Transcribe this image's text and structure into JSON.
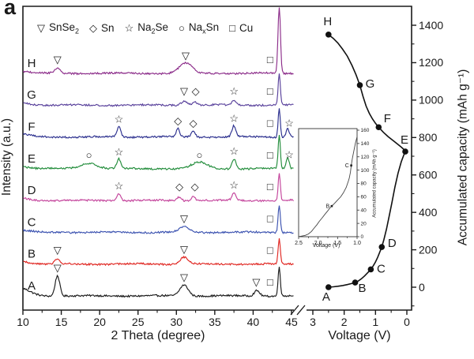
{
  "figure_label": "a",
  "chart_data": [
    {
      "id": "xrd-patterns",
      "type": "line",
      "xlabel": "2 Theta (degree)",
      "ylabel": "Intensity (a.u.)",
      "xlim": [
        10,
        45.3
      ],
      "x_ticks": [
        10,
        15,
        20,
        25,
        30,
        35,
        40,
        45
      ],
      "x_minor_step": 2.5,
      "grid": false,
      "legend_position": "top-left-inside",
      "legend": [
        {
          "symbol": "triangle-down",
          "phase": "SnSe_2"
        },
        {
          "symbol": "diamond",
          "phase": "Sn"
        },
        {
          "symbol": "star",
          "phase": "Na_2Se"
        },
        {
          "symbol": "circle",
          "phase": "Na_xSn"
        },
        {
          "symbol": "square",
          "phase": "Cu"
        }
      ],
      "traces": [
        {
          "label": "A",
          "color": "#1a1a1a",
          "peaks": [
            {
              "two_theta": 9.5,
              "height": 10,
              "width": 1.3
            },
            {
              "two_theta": 14.5,
              "height": 26,
              "width": 0.3
            },
            {
              "two_theta": 31.0,
              "height": 14,
              "width": 0.55
            },
            {
              "two_theta": 40.5,
              "height": 7,
              "width": 0.35
            },
            {
              "two_theta": 43.4,
              "height": 38,
              "width": 0.14
            }
          ],
          "markers": [
            {
              "symbol": "triangle-down",
              "two_theta": 14.5
            },
            {
              "symbol": "triangle-down",
              "two_theta": 31.0
            },
            {
              "symbol": "triangle-down",
              "two_theta": 40.4
            },
            {
              "symbol": "square",
              "two_theta": 42.2
            }
          ]
        },
        {
          "label": "B",
          "color": "#e02722",
          "peaks": [
            {
              "two_theta": 9.5,
              "height": 4,
              "width": 1.2
            },
            {
              "two_theta": 14.5,
              "height": 7,
              "width": 0.3
            },
            {
              "two_theta": 31.0,
              "height": 9,
              "width": 0.5
            },
            {
              "two_theta": 43.4,
              "height": 32,
              "width": 0.14
            }
          ],
          "markers": [
            {
              "symbol": "triangle-down",
              "two_theta": 14.5
            },
            {
              "symbol": "triangle-down",
              "two_theta": 31.0
            },
            {
              "symbol": "square",
              "two_theta": 42.2
            }
          ]
        },
        {
          "label": "C",
          "color": "#3b52b0",
          "peaks": [
            {
              "two_theta": 9.5,
              "height": 3,
              "width": 1.2
            },
            {
              "two_theta": 31.0,
              "height": 7,
              "width": 0.6
            },
            {
              "two_theta": 43.4,
              "height": 35,
              "width": 0.14
            }
          ],
          "markers": [
            {
              "symbol": "triangle-down",
              "two_theta": 31.0
            },
            {
              "symbol": "square",
              "two_theta": 42.2
            }
          ]
        },
        {
          "label": "D",
          "color": "#c4459c",
          "peaks": [
            {
              "two_theta": 9.5,
              "height": 3,
              "width": 1.2
            },
            {
              "two_theta": 22.5,
              "height": 9,
              "width": 0.25
            },
            {
              "two_theta": 30.4,
              "height": 5,
              "width": 0.25
            },
            {
              "two_theta": 32.2,
              "height": 5,
              "width": 0.25
            },
            {
              "two_theta": 37.5,
              "height": 10,
              "width": 0.25
            },
            {
              "two_theta": 43.4,
              "height": 34,
              "width": 0.14
            }
          ],
          "markers": [
            {
              "symbol": "star",
              "two_theta": 22.5
            },
            {
              "symbol": "diamond",
              "two_theta": 30.4
            },
            {
              "symbol": "diamond",
              "two_theta": 32.4
            },
            {
              "symbol": "star",
              "two_theta": 37.5
            },
            {
              "symbol": "square",
              "two_theta": 42.2
            }
          ]
        },
        {
          "label": "E",
          "color": "#218c3a",
          "peaks": [
            {
              "two_theta": 9.5,
              "height": 3,
              "width": 1.2
            },
            {
              "two_theta": 18.6,
              "height": 7,
              "width": 1.1
            },
            {
              "two_theta": 22.5,
              "height": 12,
              "width": 0.25
            },
            {
              "two_theta": 33.0,
              "height": 8,
              "width": 1.0
            },
            {
              "two_theta": 37.5,
              "height": 13,
              "width": 0.25
            },
            {
              "two_theta": 43.4,
              "height": 43,
              "width": 0.14
            },
            {
              "two_theta": 44.5,
              "height": 14,
              "width": 0.2
            }
          ],
          "markers": [
            {
              "symbol": "circle",
              "two_theta": 18.6
            },
            {
              "symbol": "star",
              "two_theta": 22.5
            },
            {
              "symbol": "circle",
              "two_theta": 33.0
            },
            {
              "symbol": "star",
              "two_theta": 37.5
            },
            {
              "symbol": "square",
              "two_theta": 42.2
            },
            {
              "symbol": "star",
              "two_theta": 44.7
            }
          ]
        },
        {
          "label": "F",
          "color": "#2b2f8e",
          "peaks": [
            {
              "two_theta": 9.5,
              "height": 4,
              "width": 1.2
            },
            {
              "two_theta": 22.5,
              "height": 13,
              "width": 0.25
            },
            {
              "two_theta": 30.2,
              "height": 11,
              "width": 0.2
            },
            {
              "two_theta": 32.2,
              "height": 8,
              "width": 0.25
            },
            {
              "two_theta": 37.5,
              "height": 14,
              "width": 0.25
            },
            {
              "two_theta": 43.4,
              "height": 36,
              "width": 0.14
            },
            {
              "two_theta": 44.5,
              "height": 11,
              "width": 0.2
            }
          ],
          "markers": [
            {
              "symbol": "star",
              "two_theta": 22.5
            },
            {
              "symbol": "diamond",
              "two_theta": 30.2
            },
            {
              "symbol": "diamond",
              "two_theta": 32.2
            },
            {
              "symbol": "star",
              "two_theta": 37.5
            },
            {
              "symbol": "square",
              "two_theta": 42.2
            },
            {
              "symbol": "star",
              "two_theta": 44.7
            }
          ]
        },
        {
          "label": "G",
          "color": "#58409b",
          "peaks": [
            {
              "two_theta": 9.5,
              "height": 3,
              "width": 1.2
            },
            {
              "two_theta": 31.0,
              "height": 5,
              "width": 0.4
            },
            {
              "two_theta": 32.4,
              "height": 4,
              "width": 0.3
            },
            {
              "two_theta": 37.5,
              "height": 5,
              "width": 0.3
            },
            {
              "two_theta": 43.4,
              "height": 40,
              "width": 0.14
            }
          ],
          "markers": [
            {
              "symbol": "triangle-down",
              "two_theta": 31.0
            },
            {
              "symbol": "diamond",
              "two_theta": 32.5
            },
            {
              "symbol": "star",
              "two_theta": 37.5
            },
            {
              "symbol": "square",
              "two_theta": 42.2
            }
          ]
        },
        {
          "label": "H",
          "color": "#8c2d8a",
          "peaks": [
            {
              "two_theta": 9.5,
              "height": 3,
              "width": 1.2
            },
            {
              "two_theta": 14.5,
              "height": 6,
              "width": 0.35
            },
            {
              "two_theta": 31.2,
              "height": 13,
              "width": 0.8
            },
            {
              "two_theta": 43.4,
              "height": 85,
              "width": 0.16
            }
          ],
          "markers": [
            {
              "symbol": "triangle-down",
              "two_theta": 14.5
            },
            {
              "symbol": "triangle-down",
              "two_theta": 31.2
            },
            {
              "symbol": "square",
              "two_theta": 42.2
            }
          ]
        }
      ]
    },
    {
      "id": "voltage-capacity-curve",
      "type": "scatter-line",
      "xlabel": "Voltage (V)",
      "ylabel": "Accumulated capacity (mAh g⁻¹)",
      "x_ticks": [
        "3",
        "2",
        "1",
        "0"
      ],
      "x_reversed": true,
      "x_minor_step": 0.5,
      "y_ticks": [
        0,
        200,
        400,
        600,
        800,
        1000,
        1200,
        1400
      ],
      "y_minor_step": 100,
      "ylim": [
        -120,
        1500
      ],
      "points": [
        {
          "label": "A",
          "voltage": 2.5,
          "capacity": 0
        },
        {
          "label": "B",
          "voltage": 1.65,
          "capacity": 25
        },
        {
          "label": "C",
          "voltage": 1.15,
          "capacity": 95
        },
        {
          "label": "D",
          "voltage": 0.8,
          "capacity": 215
        },
        {
          "label": "E",
          "voltage": 0.05,
          "capacity": 725
        },
        {
          "label": "F",
          "voltage": 0.9,
          "capacity": 855
        },
        {
          "label": "G",
          "voltage": 1.5,
          "capacity": 1080
        },
        {
          "label": "H",
          "voltage": 2.5,
          "capacity": 1350
        }
      ],
      "curve": [
        [
          2.5,
          0
        ],
        [
          2.35,
          2
        ],
        [
          2.2,
          5
        ],
        [
          2.05,
          9
        ],
        [
          1.9,
          14
        ],
        [
          1.78,
          19
        ],
        [
          1.65,
          25
        ],
        [
          1.55,
          33
        ],
        [
          1.45,
          45
        ],
        [
          1.35,
          60
        ],
        [
          1.25,
          77
        ],
        [
          1.15,
          95
        ],
        [
          1.07,
          115
        ],
        [
          1.0,
          135
        ],
        [
          0.93,
          160
        ],
        [
          0.87,
          185
        ],
        [
          0.8,
          215
        ],
        [
          0.73,
          255
        ],
        [
          0.65,
          310
        ],
        [
          0.57,
          375
        ],
        [
          0.48,
          450
        ],
        [
          0.38,
          535
        ],
        [
          0.28,
          610
        ],
        [
          0.18,
          670
        ],
        [
          0.1,
          705
        ],
        [
          0.05,
          725
        ],
        [
          0.1,
          737
        ],
        [
          0.2,
          752
        ],
        [
          0.32,
          768
        ],
        [
          0.45,
          785
        ],
        [
          0.6,
          805
        ],
        [
          0.75,
          828
        ],
        [
          0.9,
          855
        ],
        [
          1.0,
          876
        ],
        [
          1.1,
          900
        ],
        [
          1.2,
          930
        ],
        [
          1.3,
          968
        ],
        [
          1.4,
          1020
        ],
        [
          1.5,
          1080
        ],
        [
          1.62,
          1135
        ],
        [
          1.75,
          1185
        ],
        [
          1.9,
          1235
        ],
        [
          2.05,
          1272
        ],
        [
          2.2,
          1305
        ],
        [
          2.35,
          1330
        ],
        [
          2.5,
          1350
        ]
      ]
    },
    {
      "id": "inset-initial-discharge",
      "type": "line",
      "xlabel": "Voltage (V)",
      "ylabel": "Accumulated capacity (mAh g⁻¹)",
      "x_ticks": [
        "2.5",
        "2.0",
        "1.5",
        "1.0"
      ],
      "x_reversed": true,
      "y_ticks": [
        0,
        20,
        40,
        60,
        80,
        100,
        120,
        140,
        160
      ],
      "ylim": [
        0,
        160
      ],
      "labeled_points": [
        {
          "label": "B",
          "voltage": 1.65,
          "capacity": 46
        },
        {
          "label": "C",
          "voltage": 1.15,
          "capacity": 107
        }
      ],
      "curve": [
        [
          2.5,
          0
        ],
        [
          2.42,
          1
        ],
        [
          2.33,
          2
        ],
        [
          2.25,
          4
        ],
        [
          2.17,
          8
        ],
        [
          2.1,
          13
        ],
        [
          2.03,
          18
        ],
        [
          1.97,
          23
        ],
        [
          1.9,
          28
        ],
        [
          1.82,
          34
        ],
        [
          1.75,
          39
        ],
        [
          1.7,
          43
        ],
        [
          1.65,
          46
        ],
        [
          1.58,
          50
        ],
        [
          1.5,
          55
        ],
        [
          1.42,
          60
        ],
        [
          1.35,
          66
        ],
        [
          1.28,
          74
        ],
        [
          1.22,
          84
        ],
        [
          1.2,
          88
        ],
        [
          1.17,
          97
        ],
        [
          1.15,
          107
        ],
        [
          1.12,
          118
        ],
        [
          1.08,
          130
        ],
        [
          1.04,
          141
        ],
        [
          1.0,
          150
        ]
      ]
    }
  ]
}
